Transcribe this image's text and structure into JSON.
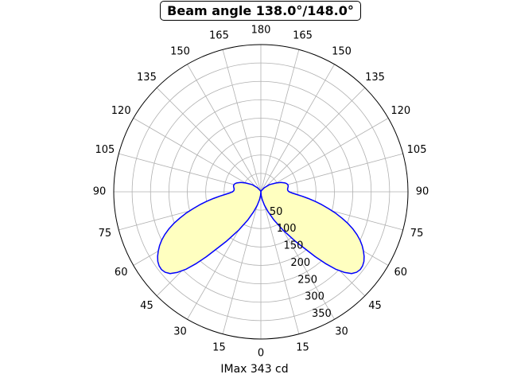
{
  "chart_data": {
    "type": "polar",
    "title": "Beam angle 138.0°/148.0°",
    "xlabel": "IMax 343 cd",
    "angle_labels": [
      "0",
      "15",
      "30",
      "45",
      "60",
      "75",
      "90",
      "105",
      "120",
      "135",
      "150",
      "165",
      "180",
      "165",
      "150",
      "135",
      "120",
      "105",
      "90",
      "75",
      "60",
      "45",
      "30",
      "15"
    ],
    "radial_ticks": [
      50,
      100,
      150,
      200,
      250,
      300,
      350
    ],
    "radial_labels": [
      "50",
      "100",
      "150",
      "200",
      "250",
      "300",
      "350"
    ],
    "rmax": 400,
    "grid": true,
    "line_color": "#0000ff",
    "fill_color": "#ffffc0",
    "series": [
      {
        "angles_deg": [
          0,
          5,
          10,
          15,
          20,
          25,
          30,
          35,
          40,
          42,
          44,
          46,
          48,
          50,
          52,
          54,
          56,
          58,
          60,
          62,
          64,
          66,
          68,
          70,
          72,
          74,
          76,
          78,
          80,
          82,
          84,
          86,
          88,
          90,
          92,
          94,
          96,
          98,
          100,
          102,
          104,
          106,
          108,
          110,
          115,
          120,
          130,
          140,
          150,
          160,
          170,
          180
        ],
        "values_cd": [
          0,
          10,
          22,
          38,
          58,
          85,
          120,
          165,
          230,
          262,
          292,
          315,
          332,
          340,
          343,
          342,
          338,
          331,
          322,
          312,
          300,
          286,
          270,
          252,
          232,
          212,
          190,
          170,
          150,
          130,
          112,
          96,
          84,
          77,
          74,
          73,
          73,
          74,
          75,
          76,
          76,
          75,
          73,
          70,
          60,
          48,
          30,
          14,
          5,
          2,
          1,
          0
        ]
      }
    ]
  }
}
